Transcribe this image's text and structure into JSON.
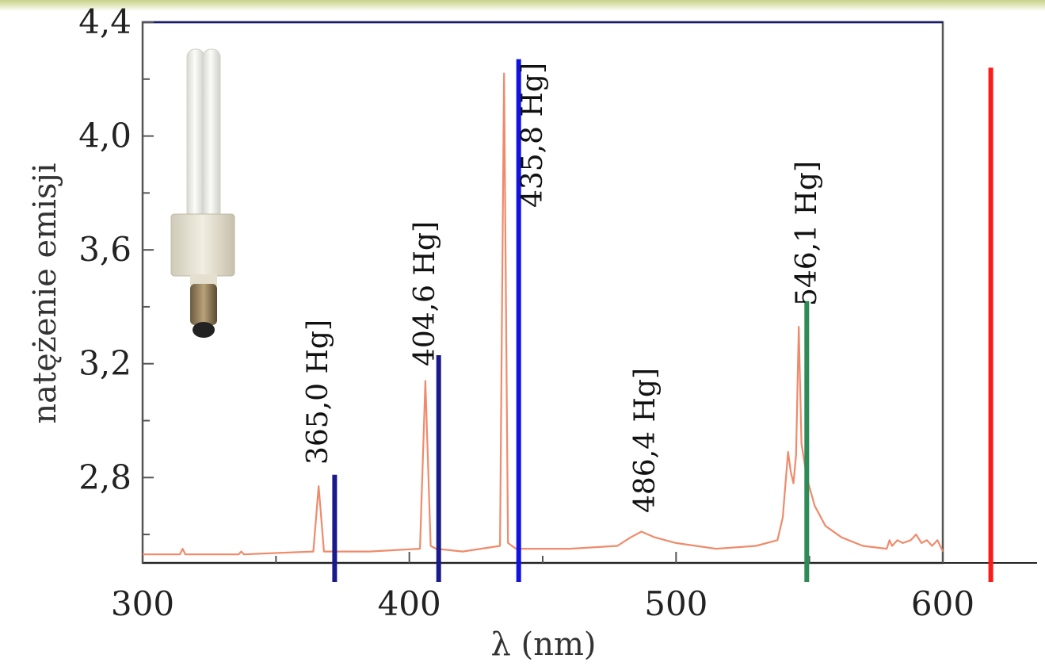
{
  "chart_data": {
    "type": "line",
    "title": "",
    "xlabel": "λ (nm)",
    "ylabel": "natężenie emisji",
    "xlim": [
      300,
      600
    ],
    "ylim": [
      2.5,
      4.4
    ],
    "x_ticks": [
      300,
      400,
      500,
      600
    ],
    "x_tick_labels": [
      "300",
      "400",
      "500",
      "600"
    ],
    "y_ticks": [
      2.8,
      3.2,
      3.6,
      4.0,
      4.4
    ],
    "y_tick_labels": [
      "2,8",
      "3,2",
      "3,6",
      "4,0",
      "4,4"
    ],
    "grid": false,
    "series": [
      {
        "name": "",
        "color": "#f08a6a",
        "points": [
          [
            300,
            2.53
          ],
          [
            314,
            2.53
          ],
          [
            315,
            2.55
          ],
          [
            316,
            2.53
          ],
          [
            336,
            2.53
          ],
          [
            337,
            2.54
          ],
          [
            338,
            2.53
          ],
          [
            364,
            2.54
          ],
          [
            366,
            2.77
          ],
          [
            368,
            2.54
          ],
          [
            370,
            2.54
          ],
          [
            385,
            2.54
          ],
          [
            404,
            2.55
          ],
          [
            406,
            3.14
          ],
          [
            408,
            2.56
          ],
          [
            410,
            2.55
          ],
          [
            420,
            2.54
          ],
          [
            434,
            2.56
          ],
          [
            435.5,
            4.22
          ],
          [
            437,
            2.57
          ],
          [
            440,
            2.55
          ],
          [
            460,
            2.55
          ],
          [
            478,
            2.56
          ],
          [
            483,
            2.59
          ],
          [
            487,
            2.61
          ],
          [
            492,
            2.59
          ],
          [
            500,
            2.57
          ],
          [
            515,
            2.55
          ],
          [
            530,
            2.56
          ],
          [
            538,
            2.58
          ],
          [
            540,
            2.66
          ],
          [
            542,
            2.89
          ],
          [
            543,
            2.82
          ],
          [
            544,
            2.78
          ],
          [
            545,
            2.88
          ],
          [
            546,
            3.33
          ],
          [
            547,
            2.92
          ],
          [
            549,
            2.8
          ],
          [
            552,
            2.7
          ],
          [
            556,
            2.63
          ],
          [
            562,
            2.59
          ],
          [
            570,
            2.56
          ],
          [
            579,
            2.55
          ],
          [
            580,
            2.58
          ],
          [
            581,
            2.56
          ],
          [
            583,
            2.58
          ],
          [
            585,
            2.57
          ],
          [
            588,
            2.58
          ],
          [
            590,
            2.6
          ],
          [
            592,
            2.57
          ],
          [
            594,
            2.58
          ],
          [
            596,
            2.56
          ],
          [
            598,
            2.58
          ],
          [
            600,
            2.54
          ]
        ]
      }
    ],
    "annotations": [
      {
        "text": "365,0 Hg]",
        "x": 365.0
      },
      {
        "text": "404,6 Hg]",
        "x": 404.6
      },
      {
        "text": "435,8 Hg]",
        "x": 435.8
      },
      {
        "text": "486,4 Hg]",
        "x": 486.4
      },
      {
        "text": "546,1 Hg]",
        "x": 546.1
      }
    ],
    "marker_lines": [
      {
        "x": 372,
        "y_top": 2.81,
        "color": "#1a1a8c"
      },
      {
        "x": 411,
        "y_top": 3.23,
        "color": "#1a1a8c"
      },
      {
        "x": 441,
        "y_top": 4.27,
        "color": "#1212e0"
      },
      {
        "x": 549,
        "y_top": 3.42,
        "color": "#2e8b57"
      },
      {
        "x": 618,
        "y_top": 4.24,
        "color": "#ff1a1a"
      }
    ],
    "image": {
      "icon": "energy-saving-bulb-icon"
    }
  }
}
